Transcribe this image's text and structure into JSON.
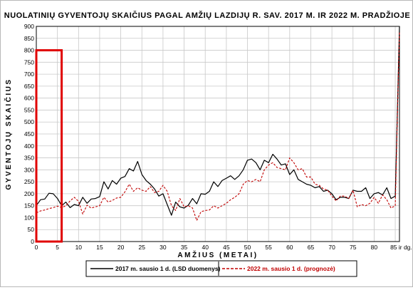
{
  "chart_data": {
    "type": "line",
    "title": "NUOLATINIŲ GYVENTOJŲ SKAIČIUS PAGAL AMŽIŲ LAZDIJŲ R. SAV. 2017 M. IR 2022 M. PRADŽIOJE",
    "xlabel": "AMŽIUS (METAI)",
    "ylabel": "GYVENTOJŲ SKAIČIUS",
    "xlim": [
      0,
      86
    ],
    "ylim": [
      0,
      900
    ],
    "x_tick_values": [
      0,
      5,
      10,
      15,
      20,
      25,
      30,
      35,
      40,
      45,
      50,
      55,
      60,
      65,
      70,
      75,
      80,
      85
    ],
    "x_tick_labels": [
      "0",
      "5",
      "10",
      "15",
      "20",
      "25",
      "30",
      "35",
      "40",
      "45",
      "50",
      "55",
      "60",
      "65",
      "70",
      "75",
      "80",
      "85 ir dg."
    ],
    "y_ticks": [
      0,
      50,
      100,
      150,
      200,
      250,
      300,
      350,
      400,
      450,
      500,
      550,
      600,
      650,
      700,
      750,
      800,
      850,
      900
    ],
    "grid": true,
    "legend_position": "bottom",
    "x": [
      0,
      1,
      2,
      3,
      4,
      5,
      6,
      7,
      8,
      9,
      10,
      11,
      12,
      13,
      14,
      15,
      16,
      17,
      18,
      19,
      20,
      21,
      22,
      23,
      24,
      25,
      26,
      27,
      28,
      29,
      30,
      31,
      32,
      33,
      34,
      35,
      36,
      37,
      38,
      39,
      40,
      41,
      42,
      43,
      44,
      45,
      46,
      47,
      48,
      49,
      50,
      51,
      52,
      53,
      54,
      55,
      56,
      57,
      58,
      59,
      60,
      61,
      62,
      63,
      64,
      65,
      66,
      67,
      68,
      69,
      70,
      71,
      72,
      73,
      74,
      75,
      76,
      77,
      78,
      79,
      80,
      81,
      82,
      83,
      84,
      85,
      86
    ],
    "series": [
      {
        "name": "2017 m. sausio 1 d. (LSD duomenys)",
        "color": "#000000",
        "dash": "solid",
        "values": [
          150,
          175,
          178,
          202,
          200,
          180,
          150,
          165,
          142,
          155,
          150,
          185,
          160,
          178,
          180,
          188,
          250,
          220,
          255,
          240,
          265,
          272,
          305,
          295,
          335,
          280,
          255,
          240,
          220,
          190,
          200,
          155,
          110,
          165,
          145,
          140,
          152,
          180,
          158,
          200,
          198,
          210,
          250,
          230,
          255,
          265,
          275,
          260,
          275,
          300,
          340,
          345,
          330,
          300,
          340,
          330,
          365,
          345,
          320,
          325,
          280,
          300,
          260,
          250,
          240,
          235,
          225,
          230,
          210,
          215,
          200,
          175,
          185,
          185,
          180,
          215,
          210,
          210,
          225,
          180,
          200,
          205,
          195,
          225,
          180,
          190,
          900
        ]
      },
      {
        "name": "2022 m. sausio 1 d. (prognozė)",
        "color": "#c00000",
        "dash": "dashed",
        "values": [
          120,
          128,
          132,
          138,
          142,
          148,
          142,
          150,
          170,
          185,
          168,
          115,
          152,
          140,
          145,
          150,
          185,
          165,
          172,
          182,
          185,
          208,
          240,
          210,
          225,
          215,
          210,
          230,
          205,
          210,
          235,
          210,
          150,
          130,
          180,
          145,
          150,
          140,
          88,
          125,
          130,
          132,
          150,
          140,
          150,
          160,
          175,
          185,
          200,
          240,
          255,
          250,
          260,
          250,
          300,
          320,
          330,
          310,
          305,
          300,
          350,
          330,
          300,
          305,
          270,
          270,
          240,
          235,
          220,
          215,
          190,
          170,
          190,
          190,
          180,
          215,
          145,
          155,
          150,
          160,
          185,
          160,
          195,
          175,
          140,
          150,
          880
        ]
      }
    ]
  },
  "highlight_box": {
    "color": "#e00000",
    "x_range": [
      0,
      6
    ],
    "y_range": [
      0,
      800
    ]
  }
}
